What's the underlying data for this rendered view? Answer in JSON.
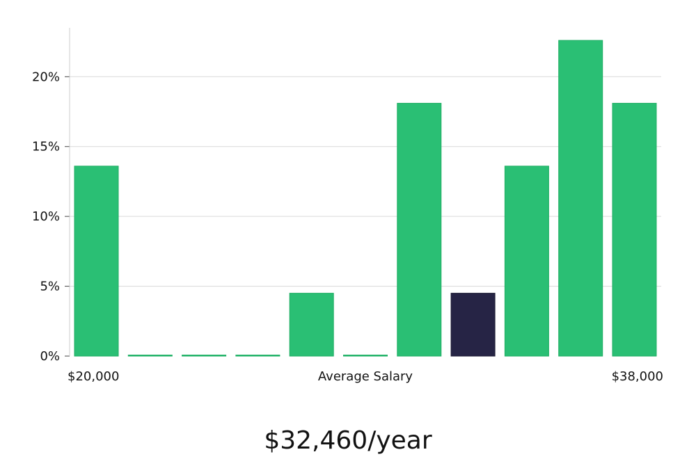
{
  "chart_data": {
    "type": "bar",
    "categories": [
      "bin-1",
      "bin-2",
      "bin-3",
      "bin-4",
      "bin-5",
      "bin-6",
      "bin-7",
      "bin-8",
      "bin-9",
      "bin-10",
      "bin-11"
    ],
    "values": [
      13.6,
      0,
      0,
      0,
      4.5,
      0,
      18.1,
      4.5,
      13.6,
      22.6,
      18.1
    ],
    "highlight_index": 7,
    "ylim": [
      0,
      23.5
    ],
    "yticks": [
      0,
      5,
      10,
      15,
      20
    ],
    "ytick_labels": [
      "0%",
      "5%",
      "10%",
      "15%",
      "20%"
    ],
    "x_start_label": "$20,000",
    "x_end_label": "$38,000",
    "xlabel": "Average Salary",
    "grid": true,
    "colors": {
      "bar": "#2abf74",
      "bar_edge": "#1fae63",
      "highlight": "#262445",
      "grid": "#d9d9d9",
      "axis": "#cccccc"
    }
  },
  "summary": {
    "salary": "$32,460/year"
  }
}
